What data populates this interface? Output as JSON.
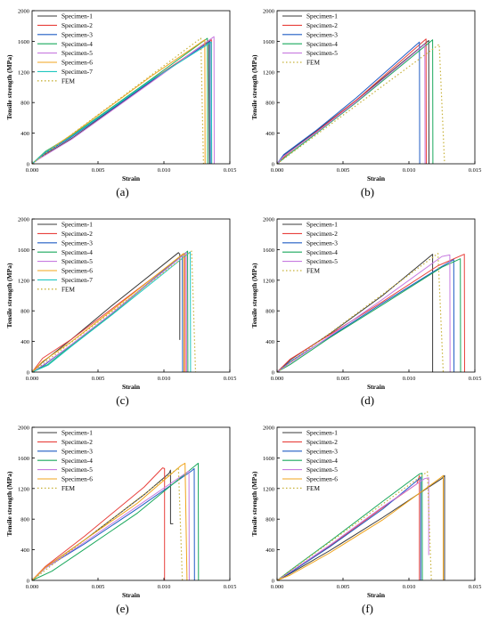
{
  "colors": {
    "Specimen-1": "#3a3a3a",
    "Specimen-2": "#e8403c",
    "Specimen-3": "#1f5bc4",
    "Specimen-4": "#19a85c",
    "Specimen-5": "#c77be0",
    "Specimen-6": "#f0a41c",
    "Specimen-7": "#1fc6c0",
    "FEM": "#c8b23a"
  },
  "chart_data": [
    {
      "type": "line",
      "caption": "(a)",
      "xlabel": "Strain",
      "ylabel": "Tensile strength (MPa)",
      "xlim": [
        0,
        0.015
      ],
      "ylim": [
        0,
        2000
      ],
      "xticks": [
        "0.000",
        "0.005",
        "0.010",
        "0.015"
      ],
      "yticks": [
        "0",
        "400",
        "800",
        "1200",
        "1600",
        "2000"
      ],
      "legend": [
        "Specimen-1",
        "Specimen-2",
        "Specimen-3",
        "Specimen-4",
        "Specimen-5",
        "Specimen-6",
        "Specimen-7",
        "FEM"
      ],
      "series": [
        {
          "name": "Specimen-1",
          "x": [
            0,
            0.0005,
            0.003,
            0.006,
            0.009,
            0.0134,
            0.0134,
            0.01345
          ],
          "y": [
            0,
            70,
            330,
            700,
            1070,
            1610,
            1300,
            0
          ]
        },
        {
          "name": "Specimen-2",
          "x": [
            0,
            0.0008,
            0.003,
            0.006,
            0.009,
            0.0136,
            0.01362
          ],
          "y": [
            0,
            110,
            360,
            720,
            1090,
            1620,
            0
          ]
        },
        {
          "name": "Specimen-3",
          "x": [
            0,
            0.001,
            0.003,
            0.006,
            0.009,
            0.0135,
            0.01352
          ],
          "y": [
            0,
            140,
            350,
            710,
            1080,
            1600,
            0
          ]
        },
        {
          "name": "Specimen-4",
          "x": [
            0,
            0.001,
            0.003,
            0.006,
            0.009,
            0.0133,
            0.01332
          ],
          "y": [
            0,
            160,
            370,
            730,
            1100,
            1640,
            0
          ]
        },
        {
          "name": "Specimen-5",
          "x": [
            0,
            0.0005,
            0.003,
            0.006,
            0.009,
            0.0138,
            0.01382
          ],
          "y": [
            0,
            60,
            320,
            690,
            1060,
            1660,
            0
          ]
        },
        {
          "name": "Specimen-6",
          "x": [
            0,
            0.001,
            0.003,
            0.006,
            0.009,
            0.0131,
            0.01312
          ],
          "y": [
            0,
            150,
            380,
            760,
            1140,
            1620,
            0
          ]
        },
        {
          "name": "Specimen-7",
          "x": [
            0,
            0.001,
            0.003,
            0.006,
            0.009,
            0.0136,
            0.01362
          ],
          "y": [
            0,
            150,
            360,
            720,
            1090,
            1590,
            0
          ]
        },
        {
          "name": "FEM",
          "x": [
            0,
            0.0128,
            0.013
          ],
          "y": [
            0,
            1640,
            0
          ],
          "dashed": true
        }
      ]
    },
    {
      "type": "line",
      "caption": "(b)",
      "xlabel": "Strain",
      "ylabel": "Tensile strength (MPa)",
      "xlim": [
        0,
        0.015
      ],
      "ylim": [
        0,
        2000
      ],
      "xticks": [
        "0.000",
        "0.005",
        "0.010",
        "0.015"
      ],
      "yticks": [
        "0",
        "400",
        "800",
        "1200",
        "1600",
        "2000"
      ],
      "legend": [
        "Specimen-1",
        "Specimen-2",
        "Specimen-3",
        "Specimen-4",
        "Specimen-5",
        "FEM"
      ],
      "series": [
        {
          "name": "Specimen-1",
          "x": [
            0,
            0.0005,
            0.003,
            0.006,
            0.0115,
            0.01152
          ],
          "y": [
            0,
            110,
            430,
            830,
            1610,
            0
          ]
        },
        {
          "name": "Specimen-2",
          "x": [
            0,
            0.0008,
            0.003,
            0.006,
            0.0113,
            0.01132
          ],
          "y": [
            0,
            130,
            420,
            830,
            1630,
            0
          ]
        },
        {
          "name": "Specimen-3",
          "x": [
            0,
            0.0005,
            0.003,
            0.006,
            0.0108,
            0.01082
          ],
          "y": [
            0,
            120,
            440,
            860,
            1590,
            0
          ]
        },
        {
          "name": "Specimen-4",
          "x": [
            0,
            0.0008,
            0.003,
            0.006,
            0.0118,
            0.01182
          ],
          "y": [
            0,
            110,
            400,
            800,
            1620,
            0
          ]
        },
        {
          "name": "Specimen-5",
          "x": [
            0,
            0.0005,
            0.003,
            0.006,
            0.0112,
            0.01122
          ],
          "y": [
            0,
            100,
            410,
            810,
            1560,
            0
          ]
        },
        {
          "name": "FEM",
          "x": [
            0,
            0.0123,
            0.0127
          ],
          "y": [
            0,
            1560,
            0
          ],
          "dashed": true
        }
      ]
    },
    {
      "type": "line",
      "caption": "(c)",
      "xlabel": "Strain",
      "ylabel": "Tensile strength (MPa)",
      "xlim": [
        0,
        0.015
      ],
      "ylim": [
        0,
        2000
      ],
      "xticks": [
        "0.000",
        "0.005",
        "0.010",
        "0.015"
      ],
      "yticks": [
        "0",
        "400",
        "800",
        "1200",
        "1600",
        "2000"
      ],
      "legend": [
        "Specimen-1",
        "Specimen-2",
        "Specimen-3",
        "Specimen-4",
        "Specimen-5",
        "Specimen-6",
        "Specimen-7",
        "FEM"
      ],
      "series": [
        {
          "name": "Specimen-1",
          "x": [
            0,
            0.0008,
            0.003,
            0.006,
            0.0111,
            0.0112,
            0.0112
          ],
          "y": [
            0,
            130,
            430,
            860,
            1560,
            1540,
            420
          ]
        },
        {
          "name": "Specimen-2",
          "x": [
            0,
            0.0008,
            0.003,
            0.006,
            0.0116,
            0.01162
          ],
          "y": [
            0,
            180,
            430,
            820,
            1550,
            0
          ]
        },
        {
          "name": "Specimen-3",
          "x": [
            0,
            0.001,
            0.003,
            0.006,
            0.0114,
            0.01142
          ],
          "y": [
            0,
            100,
            360,
            760,
            1530,
            0
          ]
        },
        {
          "name": "Specimen-4",
          "x": [
            0,
            0.0012,
            0.003,
            0.006,
            0.0118,
            0.01182
          ],
          "y": [
            0,
            100,
            350,
            750,
            1580,
            0
          ]
        },
        {
          "name": "Specimen-5",
          "x": [
            0,
            0.001,
            0.003,
            0.006,
            0.0117,
            0.01172
          ],
          "y": [
            0,
            110,
            360,
            760,
            1560,
            0
          ]
        },
        {
          "name": "Specimen-6",
          "x": [
            0,
            0.0008,
            0.003,
            0.006,
            0.0115,
            0.01152
          ],
          "y": [
            0,
            140,
            400,
            800,
            1550,
            0
          ]
        },
        {
          "name": "Specimen-7",
          "x": [
            0,
            0.0012,
            0.003,
            0.006,
            0.012,
            0.01202
          ],
          "y": [
            0,
            90,
            340,
            740,
            1570,
            0
          ]
        },
        {
          "name": "FEM",
          "x": [
            0,
            0.0121,
            0.0124
          ],
          "y": [
            0,
            1580,
            0
          ],
          "dashed": true
        }
      ]
    },
    {
      "type": "line",
      "caption": "(d)",
      "xlabel": "Strain",
      "ylabel": "Tensile strength (MPa)",
      "xlim": [
        0,
        0.015
      ],
      "ylim": [
        0,
        2000
      ],
      "xticks": [
        "0.000",
        "0.005",
        "0.010",
        "0.015"
      ],
      "yticks": [
        "0",
        "400",
        "800",
        "1200",
        "1600",
        "2000"
      ],
      "legend": [
        "Specimen-1",
        "Specimen-2",
        "Specimen-3",
        "Specimen-4",
        "Specimen-5",
        "FEM"
      ],
      "series": [
        {
          "name": "Specimen-1",
          "x": [
            0,
            0.001,
            0.004,
            0.008,
            0.0118,
            0.0118
          ],
          "y": [
            0,
            160,
            500,
            1000,
            1540,
            0
          ]
        },
        {
          "name": "Specimen-2",
          "x": [
            0,
            0.001,
            0.004,
            0.008,
            0.0122,
            0.0142,
            0.01422
          ],
          "y": [
            0,
            170,
            490,
            920,
            1390,
            1540,
            0
          ]
        },
        {
          "name": "Specimen-3",
          "x": [
            0,
            0.001,
            0.004,
            0.008,
            0.0125,
            0.0134,
            0.01342
          ],
          "y": [
            0,
            140,
            460,
            900,
            1380,
            1470,
            0
          ]
        },
        {
          "name": "Specimen-4",
          "x": [
            0,
            0.001,
            0.004,
            0.008,
            0.0125,
            0.0139,
            0.01392
          ],
          "y": [
            0,
            100,
            450,
            880,
            1370,
            1480,
            0
          ]
        },
        {
          "name": "Specimen-5",
          "x": [
            0,
            0.001,
            0.004,
            0.008,
            0.0125,
            0.0131,
            0.01312
          ],
          "y": [
            0,
            120,
            470,
            950,
            1510,
            1530,
            0
          ]
        },
        {
          "name": "FEM",
          "x": [
            0,
            0.0122,
            0.0126
          ],
          "y": [
            0,
            1550,
            0
          ],
          "dashed": true
        }
      ]
    },
    {
      "type": "line",
      "caption": "(e)",
      "xlabel": "Strain",
      "ylabel": "Tensile strength (MPa)",
      "xlim": [
        0,
        0.015
      ],
      "ylim": [
        0,
        2000
      ],
      "xticks": [
        "0.000",
        "0.005",
        "0.010",
        "0.015"
      ],
      "yticks": [
        "0",
        "400",
        "800",
        "1200",
        "1600",
        "2000"
      ],
      "legend": [
        "Specimen-1",
        "Specimen-2",
        "Specimen-3",
        "Specimen-4",
        "Specimen-5",
        "Specimen-6",
        "FEM"
      ],
      "series": [
        {
          "name": "Specimen-1",
          "x": [
            0,
            0.001,
            0.004,
            0.0085,
            0.0104,
            0.0105,
            0.0105,
            0.0107
          ],
          "y": [
            0,
            170,
            530,
            1120,
            1400,
            1440,
            740,
            740
          ]
        },
        {
          "name": "Specimen-2",
          "x": [
            0,
            0.001,
            0.004,
            0.0085,
            0.0099,
            0.01005,
            0.01005
          ],
          "y": [
            0,
            180,
            580,
            1220,
            1470,
            1460,
            0
          ]
        },
        {
          "name": "Specimen-3",
          "x": [
            0,
            0.001,
            0.004,
            0.008,
            0.0121,
            0.0123,
            0.01232
          ],
          "y": [
            0,
            160,
            480,
            940,
            1430,
            1460,
            0
          ]
        },
        {
          "name": "Specimen-4",
          "x": [
            0,
            0.0015,
            0.004,
            0.008,
            0.0126,
            0.01262
          ],
          "y": [
            0,
            120,
            410,
            880,
            1530,
            0
          ]
        },
        {
          "name": "Specimen-5",
          "x": [
            0,
            0.001,
            0.004,
            0.008,
            0.0119,
            0.01192
          ],
          "y": [
            0,
            160,
            500,
            970,
            1430,
            0
          ]
        },
        {
          "name": "Specimen-6",
          "x": [
            0,
            0.001,
            0.004,
            0.008,
            0.0113,
            0.0116,
            0.01175
          ],
          "y": [
            0,
            170,
            530,
            1010,
            1500,
            1530,
            0
          ]
        },
        {
          "name": "FEM",
          "x": [
            0,
            0.0111,
            0.0114
          ],
          "y": [
            0,
            1470,
            0
          ],
          "dashed": true
        }
      ]
    },
    {
      "type": "line",
      "caption": "(f)",
      "xlabel": "Strain",
      "ylabel": "Tensile strength (MPa)",
      "xlim": [
        0,
        0.015
      ],
      "ylim": [
        0,
        2000
      ],
      "xticks": [
        "0.000",
        "0.005",
        "0.010",
        "0.015"
      ],
      "yticks": [
        "0",
        "400",
        "800",
        "1200",
        "1600",
        "2000"
      ],
      "legend": [
        "Specimen-1",
        "Specimen-2",
        "Specimen-3",
        "Specimen-4",
        "Specimen-5",
        "Specimen-6",
        "FEM"
      ],
      "series": [
        {
          "name": "Specimen-1",
          "x": [
            0,
            0.001,
            0.004,
            0.008,
            0.0125,
            0.0127,
            0.0127
          ],
          "y": [
            0,
            90,
            390,
            820,
            1330,
            1370,
            0
          ]
        },
        {
          "name": "Specimen-2",
          "x": [
            0,
            0.001,
            0.004,
            0.008,
            0.0106,
            0.0108,
            0.0108
          ],
          "y": [
            0,
            110,
            450,
            950,
            1260,
            1370,
            0
          ]
        },
        {
          "name": "Specimen-3",
          "x": [
            0,
            0.001,
            0.004,
            0.008,
            0.0108,
            0.0109,
            0.0109
          ],
          "y": [
            0,
            100,
            440,
            930,
            1330,
            1350,
            0
          ]
        },
        {
          "name": "Specimen-4",
          "x": [
            0,
            0.001,
            0.004,
            0.008,
            0.0108,
            0.011,
            0.01102
          ],
          "y": [
            0,
            130,
            510,
            1030,
            1390,
            1400,
            0
          ]
        },
        {
          "name": "Specimen-5",
          "x": [
            0,
            0.001,
            0.004,
            0.008,
            0.0112,
            0.0115,
            0.0115
          ],
          "y": [
            0,
            110,
            460,
            960,
            1330,
            1340,
            330
          ]
        },
        {
          "name": "Specimen-6",
          "x": [
            0,
            0.001,
            0.004,
            0.008,
            0.0124,
            0.0126,
            0.0126
          ],
          "y": [
            0,
            70,
            360,
            790,
            1340,
            1370,
            0
          ]
        },
        {
          "name": "FEM",
          "x": [
            0,
            0.0114,
            0.0117
          ],
          "y": [
            0,
            1420,
            0
          ],
          "dashed": true
        }
      ]
    }
  ]
}
